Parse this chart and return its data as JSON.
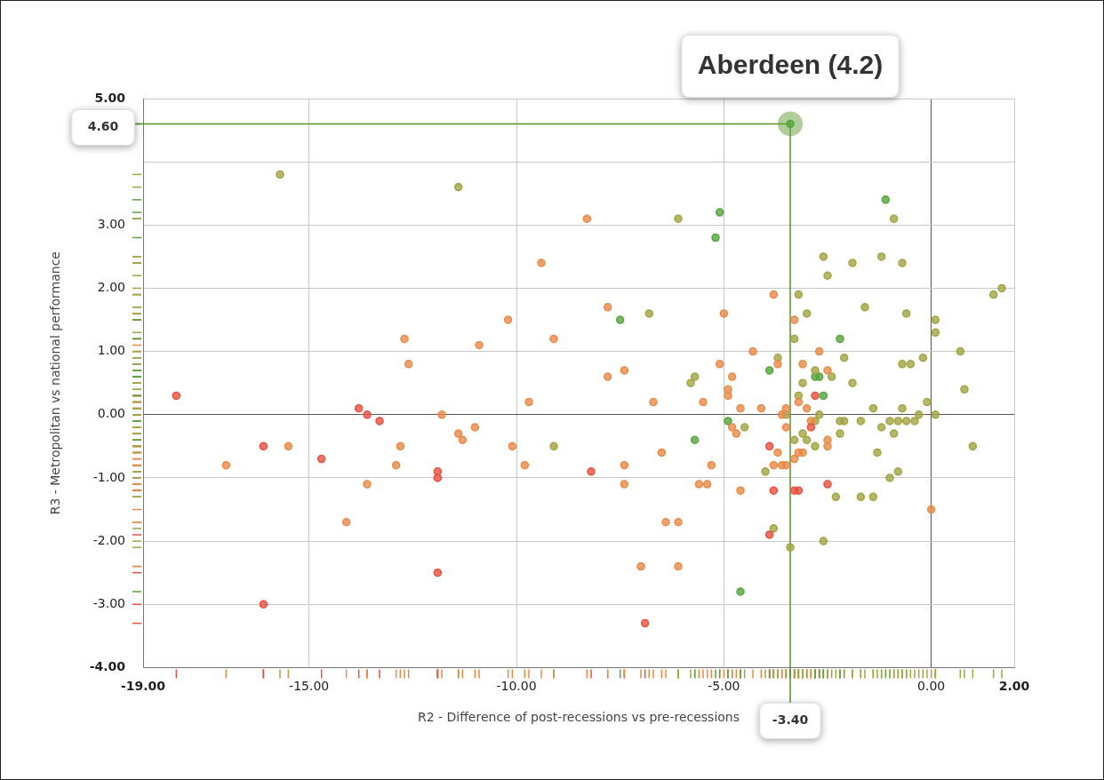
{
  "chart_data": {
    "type": "scatter",
    "xlabel": "R2 - Difference of post-recessions vs pre-recessions",
    "ylabel": "R3 - Metropolitan vs national performance",
    "xlim": [
      -19,
      2
    ],
    "ylim": [
      -4,
      5
    ],
    "xticks": [
      {
        "value": -19,
        "label": "-19.00"
      },
      {
        "value": -15,
        "label": "-15.00"
      },
      {
        "value": -10,
        "label": "-10.00"
      },
      {
        "value": -5,
        "label": "-5.00"
      },
      {
        "value": 0,
        "label": "0.00"
      },
      {
        "value": 2,
        "label": "2.00"
      }
    ],
    "yticks": [
      {
        "value": -4,
        "label": "-4.00"
      },
      {
        "value": -3,
        "label": "-3.00"
      },
      {
        "value": -2,
        "label": "-2.00"
      },
      {
        "value": -1,
        "label": "-1.00"
      },
      {
        "value": 0,
        "label": "0.00"
      },
      {
        "value": 1,
        "label": "1.00"
      },
      {
        "value": 2,
        "label": "2.00"
      },
      {
        "value": 3,
        "label": "3.00"
      },
      {
        "value": 4,
        "label": null
      },
      {
        "value": 5,
        "label": "5.00"
      }
    ],
    "grid": true,
    "legend": false,
    "marker": "circle",
    "series": [
      {
        "color": "#e8503f",
        "x": [
          -18.2,
          -13.8,
          -13.6,
          -13.3,
          -16.1,
          -14.7,
          -11.9,
          -11.9,
          -16.1,
          -11.9,
          -3.9,
          -6.9,
          -3.3,
          -3.2,
          -2.9,
          -2.8,
          -2.5,
          -3.8,
          -3.9,
          -8.2
        ],
        "values": [
          0.3,
          0.1,
          0.0,
          -0.1,
          -0.5,
          -0.7,
          -0.9,
          -1.0,
          -3.0,
          -2.5,
          -0.5,
          -3.3,
          -1.2,
          -1.2,
          -0.2,
          0.3,
          -1.1,
          -1.2,
          -1.9,
          -0.9
        ]
      },
      {
        "color": "#e88a48",
        "x": [
          -9.4,
          -12.7,
          -10.9,
          -10.2,
          -9.1,
          -12.6,
          -11.8,
          -9.7,
          -11.4,
          -11.3,
          -11.0,
          -15.5,
          -10.1,
          -17.0,
          -12.9,
          -13.6,
          -14.1,
          -8.3,
          -7.8,
          -5.0,
          -3.3,
          -4.3,
          -5.1,
          -3.1,
          -7.8,
          -7.4,
          -4.8,
          -2.5,
          -4.9,
          -4.9,
          -6.7,
          -5.5,
          -3.2,
          -4.6,
          -4.1,
          -3.5,
          -3.0,
          -3.6,
          -2.9,
          -4.8,
          -3.5,
          -4.7,
          -2.5,
          -2.5,
          -6.5,
          -3.7,
          -3.2,
          -3.1,
          -3.3,
          -7.4,
          -5.3,
          -3.8,
          -3.6,
          -3.5,
          -7.4,
          -5.6,
          -5.4,
          -4.6,
          -6.4,
          -6.1,
          -12.8,
          -9.8,
          -3.8,
          -2.7,
          -3.7,
          -7.0,
          -6.1,
          0.0
        ],
        "values": [
          2.4,
          1.2,
          1.1,
          1.5,
          1.2,
          0.8,
          0.0,
          0.2,
          -0.3,
          -0.4,
          -0.2,
          -0.5,
          -0.5,
          -0.8,
          -0.8,
          -1.1,
          -1.7,
          3.1,
          1.7,
          1.6,
          1.5,
          1.0,
          0.8,
          0.8,
          0.6,
          0.7,
          0.6,
          0.7,
          0.4,
          0.3,
          0.2,
          0.2,
          0.2,
          0.1,
          0.1,
          0.1,
          0.1,
          0.0,
          -0.1,
          -0.2,
          -0.2,
          -0.3,
          -0.4,
          -0.5,
          -0.6,
          -0.6,
          -0.6,
          -0.6,
          -0.7,
          -0.8,
          -0.8,
          -0.8,
          -0.8,
          -0.8,
          -1.1,
          -1.1,
          -1.1,
          -1.2,
          -1.7,
          -1.7,
          -0.5,
          -0.8,
          1.9,
          1.0,
          0.8,
          -2.4,
          -2.4,
          -1.5
        ]
      },
      {
        "color": "#a2a443",
        "x": [
          -15.7,
          -11.4,
          -9.1,
          -6.1,
          -0.9,
          -2.6,
          -1.9,
          -1.2,
          -0.7,
          -2.5,
          -3.2,
          1.5,
          1.7,
          -6.8,
          -3.0,
          -1.6,
          -0.6,
          0.1,
          0.1,
          -3.3,
          0.7,
          -3.7,
          -2.1,
          -0.2,
          -0.7,
          -0.5,
          -5.7,
          -5.8,
          -2.4,
          -3.1,
          -1.9,
          0.8,
          -3.2,
          -0.1,
          -1.4,
          -0.7,
          -3.5,
          -2.7,
          -0.3,
          0.1,
          -2.8,
          -2.2,
          -2.1,
          -1.7,
          -1.0,
          -0.8,
          -0.6,
          -0.4,
          -4.5,
          -1.2,
          -3.1,
          -2.2,
          -0.9,
          -3.3,
          -3.0,
          -2.8,
          1.0,
          -1.3,
          -4.0,
          -0.8,
          -1.0,
          -2.3,
          -1.7,
          -1.4,
          -3.8,
          -2.6,
          -3.4,
          -2.8
        ],
        "values": [
          3.8,
          3.6,
          -0.5,
          3.1,
          3.1,
          2.5,
          2.4,
          2.5,
          2.4,
          2.2,
          1.9,
          1.9,
          2.0,
          1.6,
          1.6,
          1.7,
          1.6,
          1.5,
          1.3,
          1.2,
          1.0,
          0.9,
          0.9,
          0.9,
          0.8,
          0.8,
          0.6,
          0.5,
          0.6,
          0.5,
          0.5,
          0.4,
          0.3,
          0.2,
          0.1,
          0.1,
          0.0,
          0.0,
          0.0,
          0.0,
          -0.1,
          -0.1,
          -0.1,
          -0.1,
          -0.1,
          -0.1,
          -0.1,
          -0.1,
          -0.2,
          -0.2,
          -0.3,
          -0.3,
          -0.3,
          -0.4,
          -0.4,
          -0.5,
          -0.5,
          -0.6,
          -0.9,
          -0.9,
          -1.0,
          -1.3,
          -1.3,
          -1.3,
          -1.8,
          -2.0,
          -2.1,
          0.7
        ]
      },
      {
        "color": "#55a53c",
        "x": [
          -3.4,
          -7.5,
          -5.1,
          -5.2,
          -1.1,
          -2.2,
          -3.9,
          -2.8,
          -2.7,
          -2.6,
          -4.9,
          -5.7,
          -4.6
        ],
        "values": [
          4.6,
          1.5,
          3.2,
          2.8,
          3.4,
          1.2,
          0.7,
          0.6,
          0.6,
          0.3,
          -0.1,
          -0.4,
          -2.8
        ]
      }
    ],
    "ref_lines": [
      {
        "axis": "y",
        "value": 4.6,
        "label": "4.60",
        "color": "#5a8f2a"
      },
      {
        "axis": "x",
        "value": -3.4,
        "label": "-3.40",
        "color": "#5a8f2a"
      }
    ],
    "annotations": [
      {
        "text": "Aberdeen (4.2)",
        "x": -3.4,
        "y": 4.6
      }
    ]
  }
}
